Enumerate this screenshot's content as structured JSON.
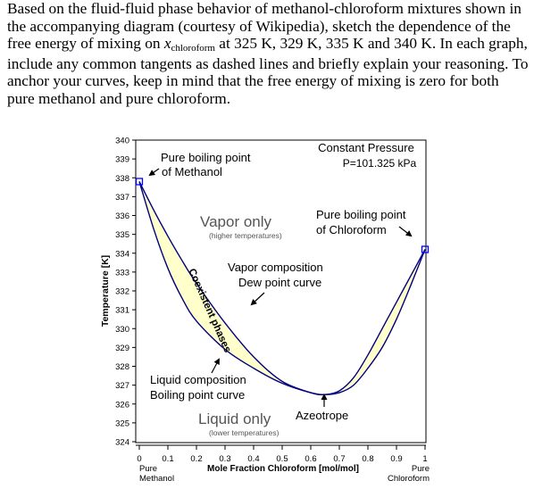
{
  "question": {
    "part1": "Based on the fluid-fluid phase behavior of methanol-chloroform mixtures shown in the accompanying diagram (courtesy of Wikipedia), sketch the dependence of the free energy of mixing on ",
    "var_x": "x",
    "var_sub": "chloroform",
    "part2": " at 325 K, 329 K, 335 K and 340 K. In each graph, include any common tangents as dashed lines and briefly explain your reasoning.",
    "sep": "  ",
    "part3": "To anchor your curves, keep in mind that the free energy of mixing is zero for both pure methanol and pure chloroform."
  },
  "chart_data": {
    "type": "line",
    "title": "Constant Pressure",
    "subtitle": "P=101.325 kPa",
    "xlabel": "Mole Fraction Chloroform [mol/mol]",
    "ylabel": "Temperature [K]",
    "xlim": [
      0,
      1
    ],
    "ylim": [
      324,
      340
    ],
    "x_ticks": [
      "0",
      "0.1",
      "0.2",
      "0.3",
      "0.4",
      "0.5",
      "0.6",
      "0.7",
      "0.8",
      "0.9",
      "1"
    ],
    "y_ticks": [
      "340",
      "339",
      "338",
      "337",
      "336",
      "335",
      "334",
      "333",
      "332",
      "331",
      "330",
      "329",
      "328",
      "327",
      "326",
      "325",
      "324"
    ],
    "x_end_labels": {
      "left": [
        "Pure",
        "Methanol"
      ],
      "right": [
        "Pure",
        "Chloroform"
      ]
    },
    "series": [
      {
        "name": "Dew point curve",
        "x": [
          0,
          0.05,
          0.1,
          0.15,
          0.2,
          0.3,
          0.4,
          0.5,
          0.6,
          0.65,
          0.7,
          0.75,
          0.8,
          0.85,
          0.9,
          0.95,
          1
        ],
        "y": [
          337.8,
          336.3,
          334.9,
          333.6,
          332.4,
          330.3,
          328.5,
          327.2,
          326.6,
          326.5,
          326.7,
          327.4,
          328.6,
          330.0,
          331.4,
          332.8,
          334.2
        ]
      },
      {
        "name": "Boiling point curve",
        "x": [
          0,
          0.05,
          0.1,
          0.15,
          0.2,
          0.3,
          0.4,
          0.5,
          0.6,
          0.65,
          0.7,
          0.75,
          0.8,
          0.85,
          0.9,
          0.95,
          1
        ],
        "y": [
          337.8,
          335.3,
          333.2,
          331.6,
          330.4,
          328.9,
          327.9,
          327.1,
          326.6,
          326.5,
          326.6,
          327.0,
          327.9,
          329.0,
          330.5,
          332.3,
          334.2
        ]
      }
    ],
    "markers": [
      {
        "x": 0,
        "y": 337.8
      },
      {
        "x": 1,
        "y": 334.2
      }
    ],
    "azeotrope": {
      "x": 0.65,
      "y": 326.5
    },
    "fill_color": "#ffffcc",
    "line_color": "#000080",
    "marker_color": "#0000ff",
    "annotations": {
      "pure_methanol": [
        "Pure boiling point",
        "of Methanol"
      ],
      "pure_chloroform": [
        "Pure boiling point",
        "of Chloroform"
      ],
      "vapor_only": "Vapor only",
      "vapor_only_sub": "(higher temperatures)",
      "liquid_only": "Liquid only",
      "liquid_only_sub": "(lower temperatures)",
      "coexistent": "Coexistent phases",
      "vapor_comp": [
        "Vapor composition",
        "Dew point curve"
      ],
      "liquid_comp": [
        "Liquid composition",
        "Boiling point curve"
      ],
      "azeotrope": "Azeotrope"
    }
  }
}
